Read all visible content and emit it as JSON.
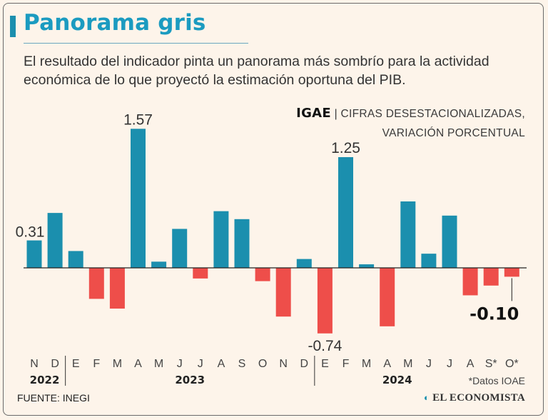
{
  "header": {
    "title": "Panorama gris",
    "subtitle": "El resultado del indicador pinta un panorama más sombrío para la actividad económica de lo que proyectó la estimación oportuna del PIB.",
    "series_name": "IGAE",
    "series_desc_1": "| CIFRAS DESESTACIONALIZADAS,",
    "series_desc_2": "VARIACIÓN PORCENTUAL"
  },
  "footer": {
    "source": "FUENTE: INEGI",
    "brand": "EL ECONOMISTA",
    "brand_mark": "◐",
    "note": "*Datos IOAE"
  },
  "colors": {
    "positive": "#1b8fae",
    "negative": "#ee4e4a",
    "accent": "#1b9bc0"
  },
  "chart_data": {
    "type": "bar",
    "title": "IGAE",
    "ylabel": "Variación porcentual",
    "categories": [
      "N",
      "D",
      "E",
      "F",
      "M",
      "A",
      "M",
      "J",
      "J",
      "A",
      "S",
      "O",
      "N",
      "D",
      "E",
      "F",
      "M",
      "A",
      "M",
      "J",
      "J",
      "A",
      "S*",
      "O*"
    ],
    "values": [
      0.31,
      0.62,
      0.19,
      -0.35,
      -0.46,
      1.57,
      0.07,
      0.44,
      -0.12,
      0.64,
      0.55,
      -0.15,
      -0.55,
      0.1,
      -0.74,
      1.25,
      0.04,
      -0.66,
      0.75,
      0.16,
      0.59,
      -0.31,
      -0.2,
      -0.1
    ],
    "labels": [
      {
        "index": 0,
        "text": "0.31"
      },
      {
        "index": 5,
        "text": "1.57"
      },
      {
        "index": 14,
        "text": "-0.74"
      },
      {
        "index": 15,
        "text": "1.25"
      },
      {
        "index": 23,
        "text": "-0.10"
      }
    ],
    "years": [
      {
        "label": "2022",
        "from": 0,
        "to": 1
      },
      {
        "label": "2023",
        "from": 2,
        "to": 13
      },
      {
        "label": "2024",
        "from": 14,
        "to": 23
      }
    ],
    "ylim": [
      -0.74,
      1.57
    ]
  }
}
